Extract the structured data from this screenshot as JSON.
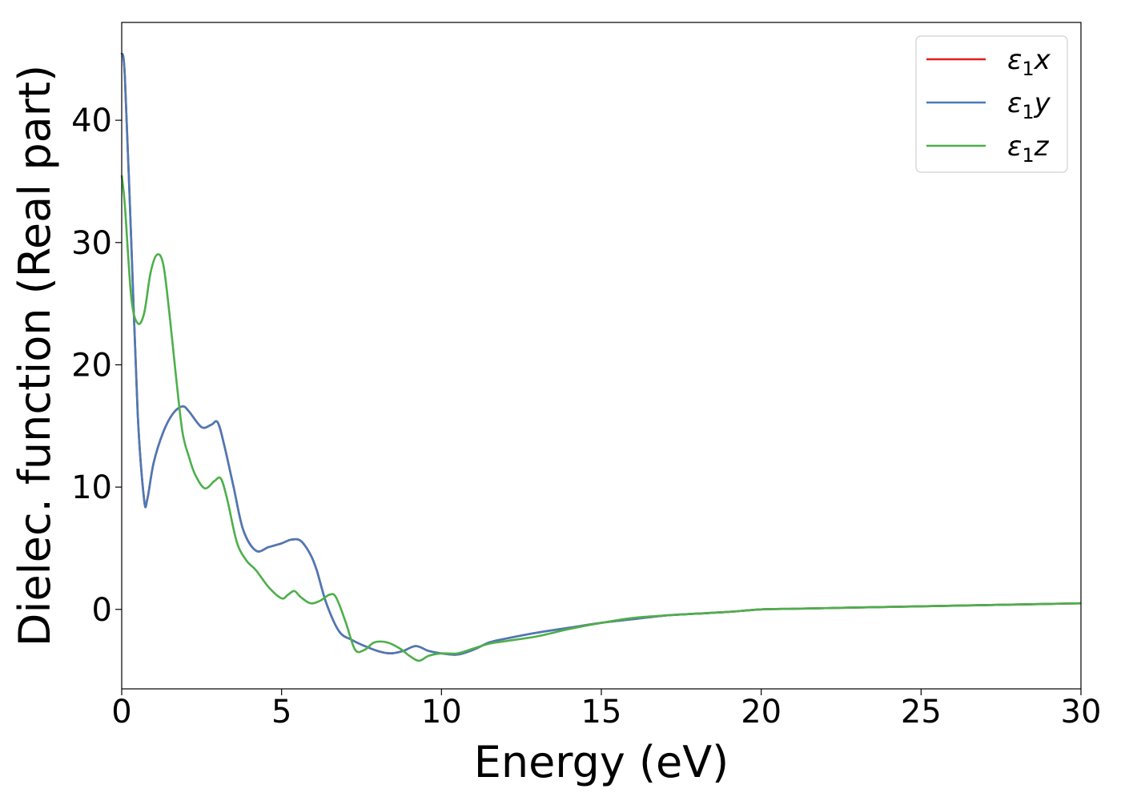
{
  "chart_data": {
    "type": "line",
    "title": "",
    "xlabel": "Energy (eV)",
    "ylabel": "Dielec. function (Real part)",
    "xlim": [
      0,
      30
    ],
    "ylim": [
      -6.5,
      48
    ],
    "xticks": [
      0,
      5,
      10,
      15,
      20,
      25,
      30
    ],
    "yticks": [
      0,
      10,
      20,
      30,
      40
    ],
    "grid": false,
    "legend_position": "top-right",
    "series": [
      {
        "name": "ε₁x",
        "legend_base": "ε",
        "legend_sub": "1",
        "legend_suffix": "x",
        "color": "#e41a1c",
        "x": [
          0,
          0.1,
          0.3,
          0.5,
          0.7,
          0.8,
          1.0,
          1.3,
          1.6,
          1.9,
          2.1,
          2.5,
          2.8,
          3.0,
          3.2,
          3.5,
          3.8,
          4.2,
          4.6,
          5.0,
          5.3,
          5.6,
          5.9,
          6.1,
          6.4,
          6.8,
          7.2,
          7.6,
          8.0,
          8.4,
          8.8,
          9.2,
          9.6,
          10.0,
          10.5,
          11.0,
          11.5,
          12.0,
          13.0,
          14.0,
          15.0,
          16.0,
          17.0,
          18.0,
          19.0,
          20.0,
          21.0,
          22.0,
          23.0,
          24.0,
          25.0,
          26.0,
          27.0,
          28.0,
          29.0,
          30.0
        ],
        "y": [
          45.5,
          43.5,
          30.0,
          16.0,
          9.0,
          9.0,
          12.0,
          14.5,
          16.0,
          16.6,
          16.2,
          14.9,
          15.1,
          15.3,
          13.5,
          10.0,
          6.5,
          4.8,
          5.1,
          5.4,
          5.7,
          5.6,
          4.5,
          3.2,
          0.5,
          -1.8,
          -2.5,
          -3.0,
          -3.4,
          -3.6,
          -3.4,
          -3.0,
          -3.4,
          -3.6,
          -3.7,
          -3.3,
          -2.7,
          -2.4,
          -1.9,
          -1.5,
          -1.1,
          -0.8,
          -0.5,
          -0.35,
          -0.2,
          0.0,
          0.05,
          0.1,
          0.15,
          0.2,
          0.25,
          0.3,
          0.35,
          0.4,
          0.45,
          0.5
        ]
      },
      {
        "name": "ε₁y",
        "legend_base": "ε",
        "legend_sub": "1",
        "legend_suffix": "y",
        "color": "#4a7ab7",
        "x": [
          0,
          0.1,
          0.3,
          0.5,
          0.7,
          0.8,
          1.0,
          1.3,
          1.6,
          1.9,
          2.1,
          2.5,
          2.8,
          3.0,
          3.2,
          3.5,
          3.8,
          4.2,
          4.6,
          5.0,
          5.3,
          5.6,
          5.9,
          6.1,
          6.4,
          6.8,
          7.2,
          7.6,
          8.0,
          8.4,
          8.8,
          9.2,
          9.6,
          10.0,
          10.5,
          11.0,
          11.5,
          12.0,
          13.0,
          14.0,
          15.0,
          16.0,
          17.0,
          18.0,
          19.0,
          20.0,
          21.0,
          22.0,
          23.0,
          24.0,
          25.0,
          26.0,
          27.0,
          28.0,
          29.0,
          30.0
        ],
        "y": [
          45.5,
          43.5,
          30.0,
          16.0,
          9.0,
          9.0,
          12.0,
          14.5,
          16.0,
          16.6,
          16.2,
          14.9,
          15.1,
          15.3,
          13.5,
          10.0,
          6.5,
          4.8,
          5.1,
          5.4,
          5.7,
          5.6,
          4.5,
          3.2,
          0.5,
          -1.8,
          -2.5,
          -3.0,
          -3.4,
          -3.6,
          -3.4,
          -3.0,
          -3.4,
          -3.6,
          -3.7,
          -3.3,
          -2.7,
          -2.4,
          -1.9,
          -1.5,
          -1.1,
          -0.8,
          -0.5,
          -0.35,
          -0.2,
          0.0,
          0.05,
          0.1,
          0.15,
          0.2,
          0.25,
          0.3,
          0.35,
          0.4,
          0.45,
          0.5
        ]
      },
      {
        "name": "ε₁z",
        "legend_base": "ε",
        "legend_sub": "1",
        "legend_suffix": "z",
        "color": "#4daf4a",
        "x": [
          0,
          0.1,
          0.3,
          0.5,
          0.7,
          0.9,
          1.1,
          1.3,
          1.5,
          1.7,
          1.9,
          2.1,
          2.3,
          2.6,
          2.9,
          3.1,
          3.3,
          3.6,
          3.9,
          4.2,
          4.6,
          5.0,
          5.2,
          5.4,
          5.6,
          5.9,
          6.2,
          6.5,
          6.7,
          7.0,
          7.3,
          7.6,
          7.9,
          8.3,
          8.7,
          9.0,
          9.3,
          9.6,
          10.0,
          10.5,
          11.0,
          11.5,
          12.0,
          13.0,
          14.0,
          15.0,
          16.0,
          17.0,
          18.0,
          19.0,
          20.0,
          21.0,
          22.0,
          23.0,
          24.0,
          25.0,
          26.0,
          27.0,
          28.0,
          29.0,
          30.0
        ],
        "y": [
          35.5,
          33.0,
          25.5,
          23.4,
          24.2,
          27.5,
          29.0,
          28.2,
          24.0,
          19.0,
          14.5,
          12.5,
          11.0,
          9.9,
          10.5,
          10.7,
          9.0,
          5.5,
          4.0,
          3.2,
          1.8,
          0.9,
          1.2,
          1.5,
          1.0,
          0.5,
          0.7,
          1.2,
          1.0,
          -1.0,
          -3.3,
          -3.3,
          -2.7,
          -2.7,
          -3.2,
          -3.8,
          -4.2,
          -3.8,
          -3.6,
          -3.6,
          -3.2,
          -2.8,
          -2.6,
          -2.2,
          -1.6,
          -1.1,
          -0.7,
          -0.5,
          -0.35,
          -0.2,
          0.0,
          0.05,
          0.1,
          0.15,
          0.2,
          0.25,
          0.3,
          0.35,
          0.4,
          0.45,
          0.5
        ]
      }
    ]
  }
}
